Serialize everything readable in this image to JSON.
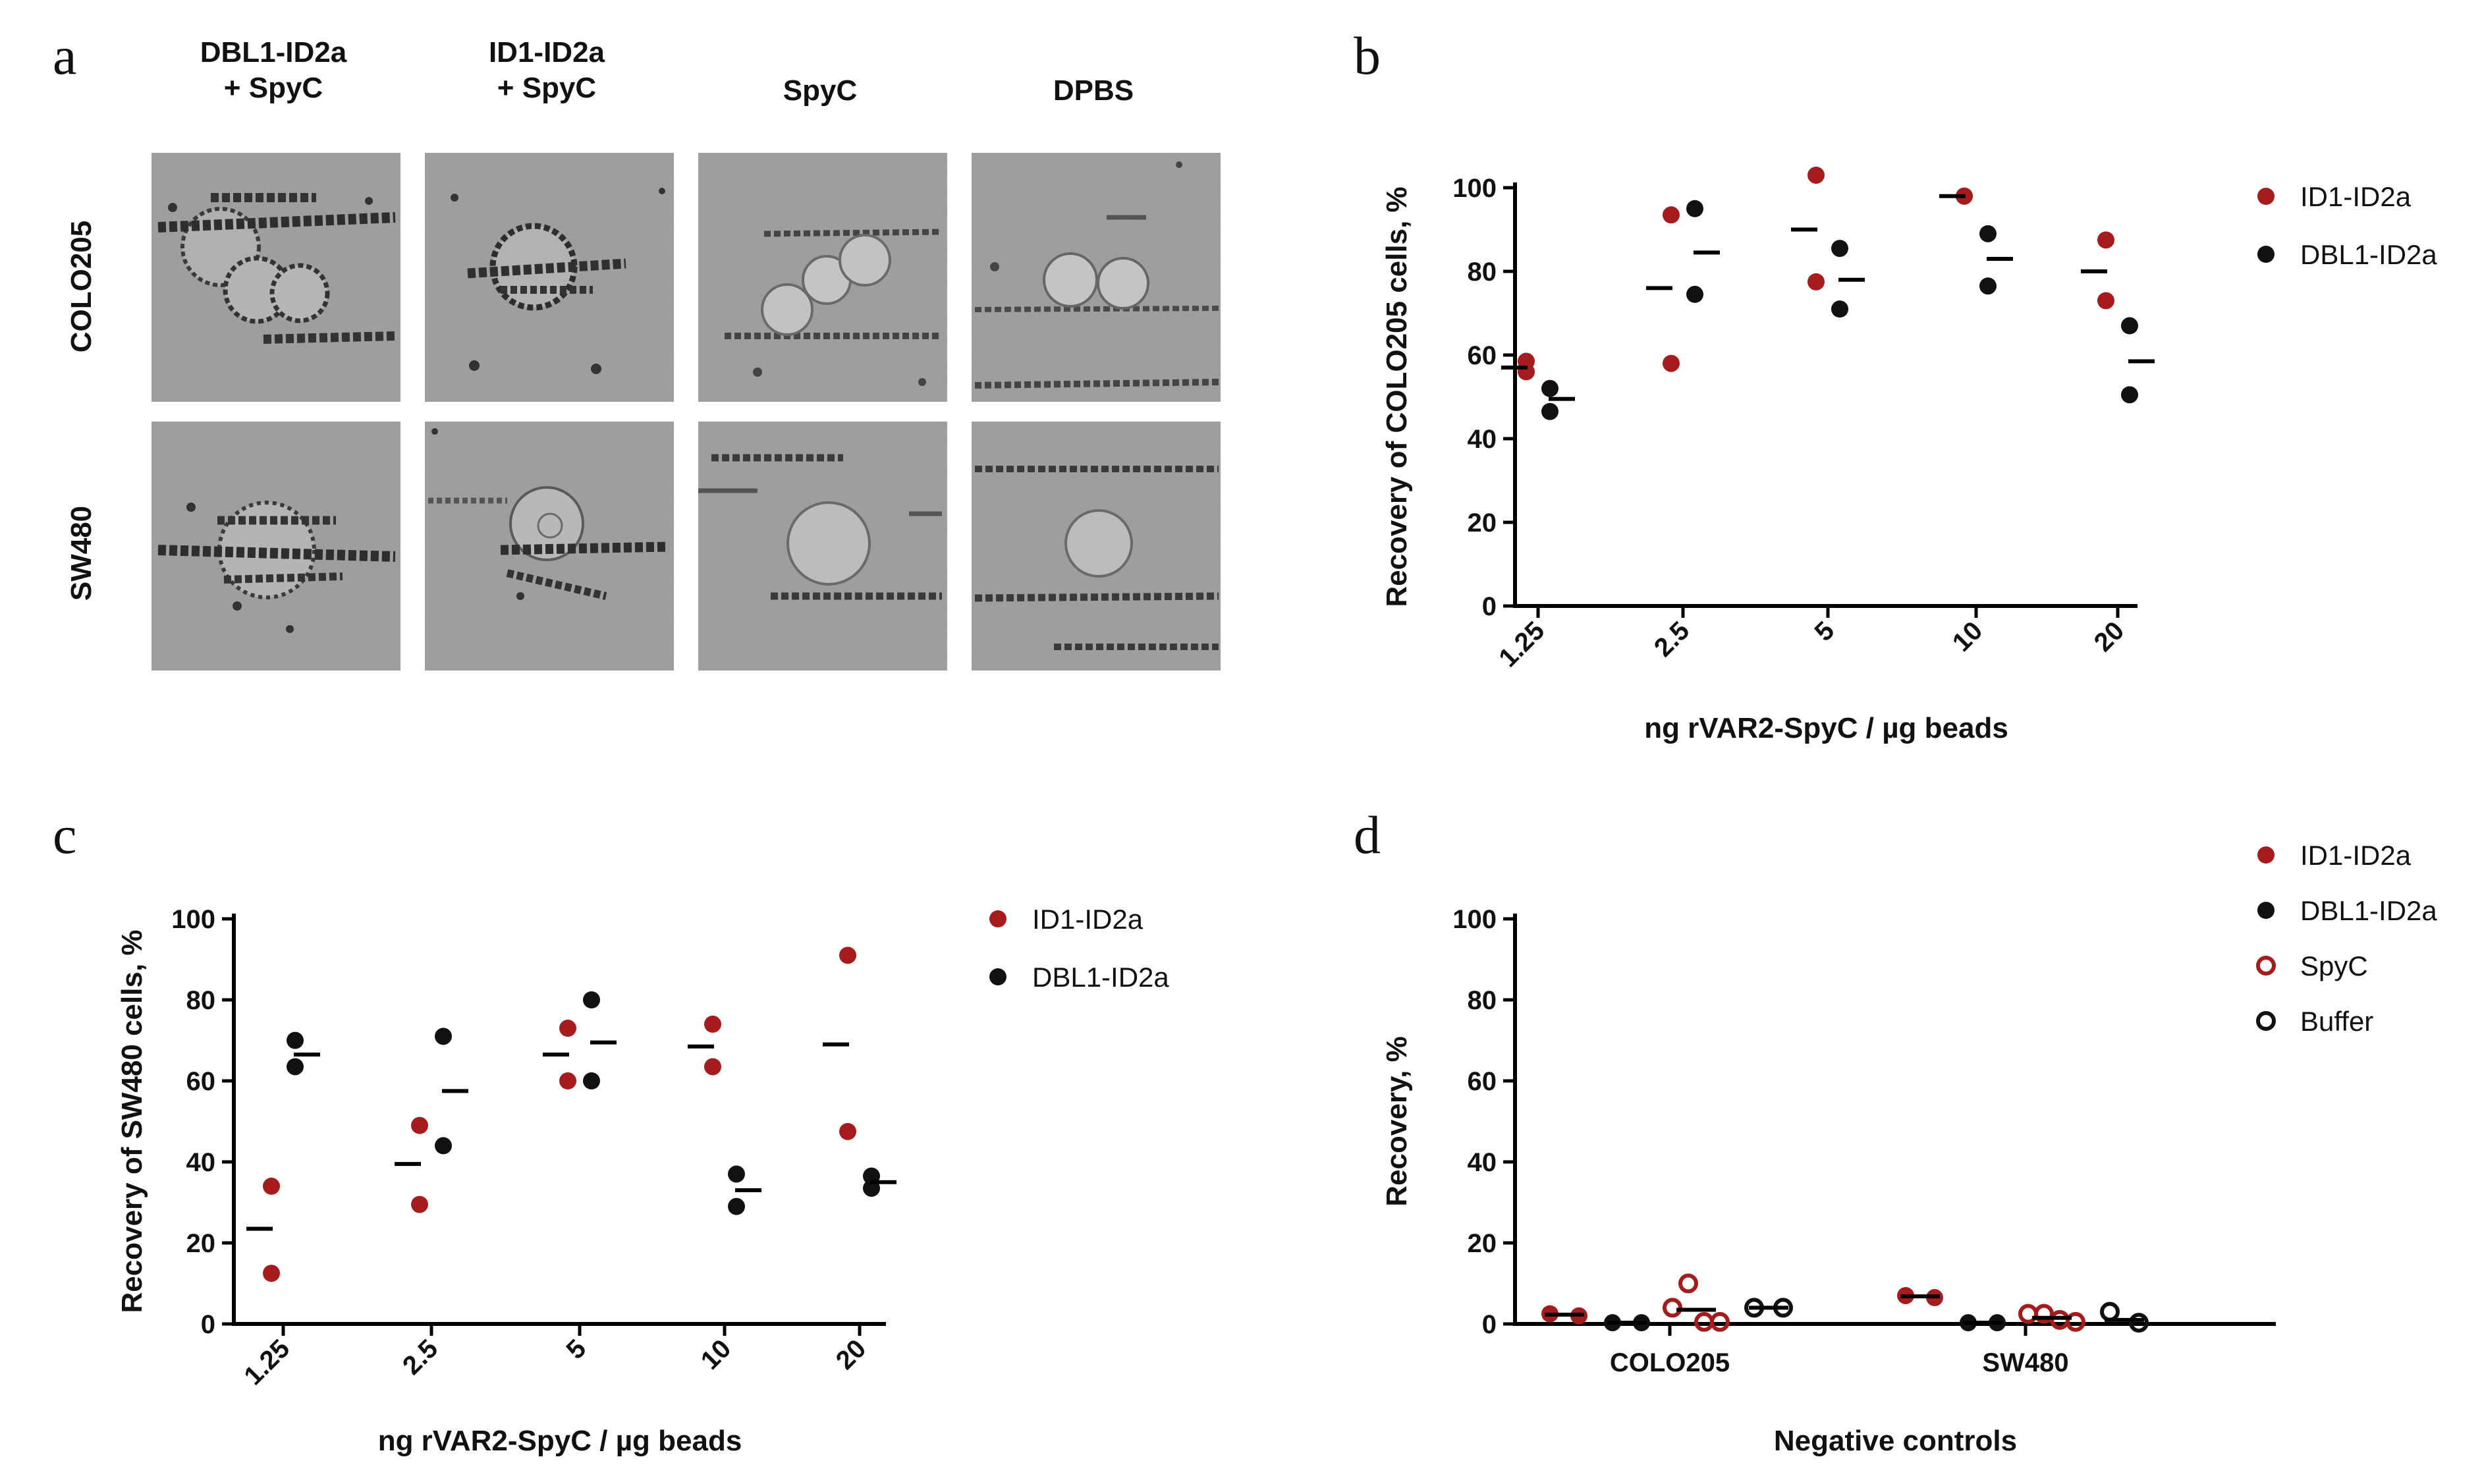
{
  "colors": {
    "red": "#a61b1b",
    "black": "#111111",
    "micrograph_bg": "#9a9a9a"
  },
  "panel_a": {
    "letter": "a",
    "columns": [
      {
        "line1": "DBL1-ID2a",
        "line2": "+ SpyC"
      },
      {
        "line1": "ID1-ID2a",
        "line2": "+ SpyC"
      },
      {
        "line1": "SpyC",
        "line2": ""
      },
      {
        "line1": "DPBS",
        "line2": ""
      }
    ],
    "rows": [
      "COLO205",
      "SW480"
    ]
  },
  "chart_data": [
    {
      "panel": "b",
      "type": "scatter",
      "ylabel": "Recovery of COLO205 cells, %",
      "xlabel": "ng rVAR2-SpyC / µg beads",
      "categories": [
        "1.25",
        "2.5",
        "5",
        "10",
        "20"
      ],
      "ylim": [
        0,
        100
      ],
      "yticks": [
        0,
        20,
        40,
        60,
        80,
        100
      ],
      "series": [
        {
          "name": "ID1-ID2a",
          "color": "#a61b1b",
          "filled": true,
          "points": [
            [
              58.5,
              56
            ],
            [
              93.5,
              58
            ],
            [
              103,
              77.5
            ],
            [
              98,
              98
            ],
            [
              87.5,
              73
            ]
          ],
          "means": [
            57,
            76,
            90,
            98,
            80
          ]
        },
        {
          "name": "DBL1-ID2a",
          "color": "#111111",
          "filled": true,
          "points": [
            [
              52,
              46.5
            ],
            [
              95,
              74.5
            ],
            [
              85.5,
              71
            ],
            [
              89,
              76.5
            ],
            [
              67,
              50.5
            ]
          ],
          "means": [
            49.5,
            84.5,
            78,
            83,
            58.5
          ]
        }
      ]
    },
    {
      "panel": "c",
      "type": "scatter",
      "ylabel": "Recovery of SW480 cells, %",
      "xlabel": "ng rVAR2-SpyC / µg beads",
      "categories": [
        "1.25",
        "2.5",
        "5",
        "10",
        "20"
      ],
      "ylim": [
        0,
        100
      ],
      "yticks": [
        0,
        20,
        40,
        60,
        80,
        100
      ],
      "series": [
        {
          "name": "ID1-ID2a",
          "color": "#a61b1b",
          "filled": true,
          "points": [
            [
              34,
              12.5
            ],
            [
              49,
              29.5
            ],
            [
              73,
              60
            ],
            [
              74,
              63.5
            ],
            [
              91,
              47.5
            ]
          ],
          "means": [
            23.5,
            39.5,
            66.5,
            68.5,
            69
          ]
        },
        {
          "name": "DBL1-ID2a",
          "color": "#111111",
          "filled": true,
          "points": [
            [
              70,
              63.5
            ],
            [
              71,
              44
            ],
            [
              80,
              60
            ],
            [
              37,
              29
            ],
            [
              36.5,
              33.5
            ]
          ],
          "means": [
            66.5,
            57.5,
            69.5,
            33,
            35
          ]
        }
      ]
    },
    {
      "panel": "d",
      "type": "scatter",
      "ylabel": "Recovery, %",
      "xlabel": "Negative controls",
      "categories": [
        "COLO205",
        "SW480"
      ],
      "ylim": [
        0,
        100
      ],
      "yticks": [
        0,
        20,
        40,
        60,
        80,
        100
      ],
      "series": [
        {
          "name": "ID1-ID2a",
          "color": "#a61b1b",
          "filled": true,
          "points": [
            [
              2.5,
              2
            ],
            [
              7,
              6.5
            ]
          ],
          "means": [
            2.3,
            6.8
          ]
        },
        {
          "name": "DBL1-ID2a",
          "color": "#111111",
          "filled": true,
          "points": [
            [
              0.3,
              0.3
            ],
            [
              0.3,
              0.3
            ]
          ],
          "means": [
            0.3,
            0.3
          ]
        },
        {
          "name": "SpyC",
          "color": "#a61b1b",
          "filled": false,
          "points": [
            [
              4,
              10,
              0.5,
              0.5
            ],
            [
              2.5,
              2.5,
              1,
              0.5
            ]
          ],
          "means": [
            3.5,
            1.5
          ]
        },
        {
          "name": "Buffer",
          "color": "#111111",
          "filled": false,
          "points": [
            [
              4,
              4
            ],
            [
              3,
              0.3
            ]
          ],
          "means": [
            4,
            1
          ]
        }
      ]
    }
  ]
}
